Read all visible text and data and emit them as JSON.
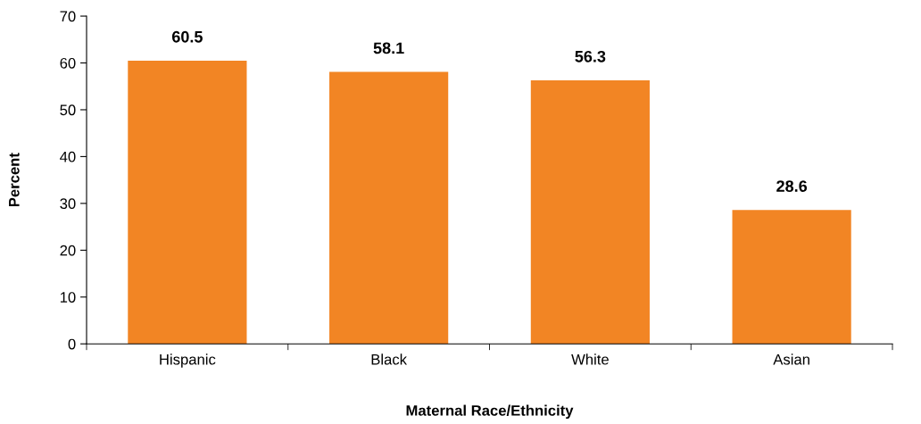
{
  "chart_data": {
    "type": "bar",
    "xlabel": "Maternal Race/Ethnicity",
    "ylabel": "Percent",
    "categories": [
      "Hispanic",
      "Black",
      "White",
      "Asian"
    ],
    "values": [
      60.5,
      58.1,
      56.3,
      28.6
    ],
    "color": "#f28524",
    "ylim": [
      0,
      70
    ],
    "yticks": [
      0,
      10,
      20,
      30,
      40,
      50,
      60,
      70
    ],
    "grid": false,
    "data_labels": true
  }
}
